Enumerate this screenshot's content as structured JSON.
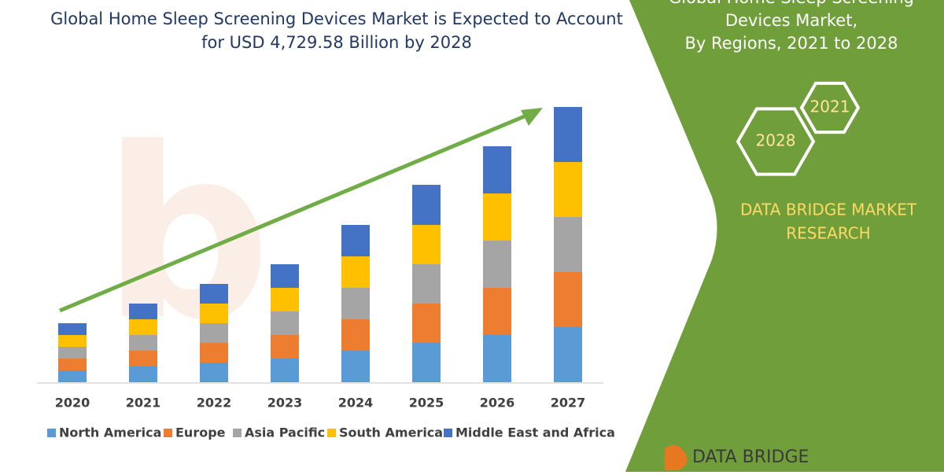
{
  "chart_data": {
    "type": "stacked-bar",
    "title_lines": [
      "Global Home Sleep Screening Devices Market is Expected to Account",
      "for USD 4,729.58 Billion by 2028"
    ],
    "categories": [
      "2020",
      "2021",
      "2022",
      "2023",
      "2024",
      "2025",
      "2026",
      "2027"
    ],
    "series": [
      {
        "name": "North America",
        "color": "#5b9bd5",
        "values": [
          15,
          20,
          25,
          30,
          40,
          50,
          60,
          70
        ]
      },
      {
        "name": "Europe",
        "color": "#ed7d31",
        "values": [
          15,
          20,
          25,
          30,
          40,
          50,
          60,
          70
        ]
      },
      {
        "name": "Asia Pacific",
        "color": "#a5a5a5",
        "values": [
          15,
          20,
          25,
          30,
          40,
          50,
          60,
          70
        ]
      },
      {
        "name": "South America",
        "color": "#ffc000",
        "values": [
          15,
          20,
          25,
          30,
          40,
          50,
          60,
          70
        ]
      },
      {
        "name": "Middle East and Africa",
        "color": "#4472c4",
        "values": [
          15,
          20,
          25,
          30,
          40,
          51,
          60,
          70
        ]
      }
    ]
  },
  "side_panel": {
    "title_lines": [
      "Global Home Sleep Screening",
      "Devices Market,",
      "By Regions, 2021 to 2028"
    ],
    "hexagons": [
      "2021",
      "2028"
    ],
    "brand_lines": [
      "DATA BRIDGE MARKET",
      "RESEARCH"
    ],
    "logo": "DATA BRIDGE"
  }
}
